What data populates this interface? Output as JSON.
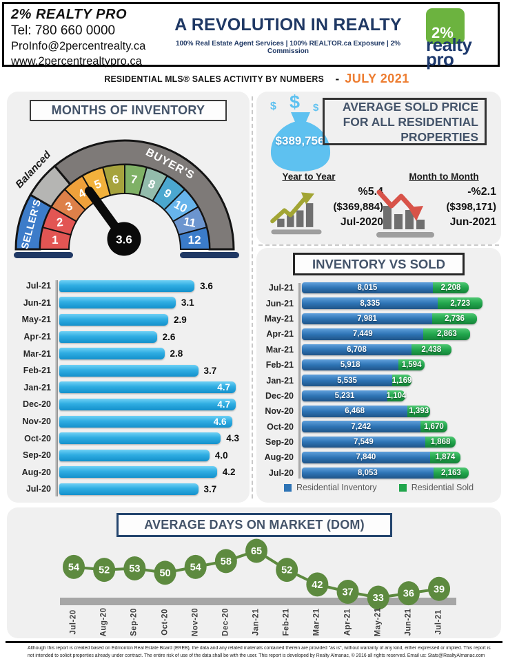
{
  "header": {
    "company": "2% REALTY PRO",
    "phone": "Tel: 780 660 0000",
    "email": "ProInfo@2percentrealty.ca",
    "website": "www.2percentrealtypro.ca",
    "tagline": "A REVOLUTION IN REALTY",
    "tagline_sub": "100% Real Estate Agent Services | 100% REALTOR.ca Exposure | 2% Commission",
    "logo": {
      "badge": "2%",
      "name_line1": "realty",
      "name_line2": "pro",
      "green": "#6CB33F",
      "navy": "#1E3A6E"
    }
  },
  "banner": {
    "title": "RESIDENTIAL MLS® SALES ACTIVITY BY NUMBERS",
    "dash": "-",
    "period": "JULY 2021",
    "period_color": "#ED7D31"
  },
  "gauge": {
    "title": "MONTHS OF INVENTORY",
    "value": 3.6,
    "value_label": "3.6",
    "left_label": "SELLER'S",
    "outside_label": "Balanced",
    "right_label": "BUYER'S",
    "segments": [
      {
        "label": "1",
        "color": "#E25553"
      },
      {
        "label": "2",
        "color": "#E25553"
      },
      {
        "label": "3",
        "color": "#DD8049"
      },
      {
        "label": "4",
        "color": "#EFA13B"
      },
      {
        "label": "5",
        "color": "#F2B13C"
      },
      {
        "label": "6",
        "color": "#A6A33D"
      },
      {
        "label": "7",
        "color": "#7FB166"
      },
      {
        "label": "8",
        "color": "#93BCAC"
      },
      {
        "label": "9",
        "color": "#4BA7CF"
      },
      {
        "label": "10",
        "color": "#67B4EB"
      },
      {
        "label": "11",
        "color": "#6C95CF"
      },
      {
        "label": "12",
        "color": "#3B7CC9"
      }
    ],
    "outer_bands": [
      {
        "from": 0,
        "to": 30,
        "color": "#3D7CC9"
      },
      {
        "from": 30,
        "to": 50,
        "color": "#B5B5B3"
      },
      {
        "from": 50,
        "to": 180,
        "color": "#7E7A78"
      }
    ],
    "base_bar_color": "#1F3864",
    "needle_color": "#0A0A0A"
  },
  "avg_price": {
    "title_line1": "AVERAGE  SOLD PRICE",
    "title_line2": "FOR ALL RESIDENTIAL",
    "title_line3": "PROPERTIES",
    "value": "$389,756",
    "bag_color": "#5EC1F0",
    "yoy": {
      "label": "Year to Year",
      "pct": "%5.4",
      "amount": "($369,884)",
      "period": "Jul-2020",
      "trend": "up",
      "arrow_color": "#A2A534"
    },
    "mom": {
      "label": "Month to Month",
      "pct": "-%2.1",
      "amount": "($398,171)",
      "period": "Jun-2021",
      "trend": "down",
      "arrow_color": "#D85349"
    }
  },
  "chart_data": [
    {
      "id": "months_of_inventory",
      "type": "bar",
      "orientation": "horizontal",
      "title": "MONTHS OF INVENTORY",
      "categories": [
        "Jul-21",
        "Jun-21",
        "May-21",
        "Apr-21",
        "Mar-21",
        "Feb-21",
        "Jan-21",
        "Dec-20",
        "Nov-20",
        "Oct-20",
        "Sep-20",
        "Aug-20",
        "Jul-20"
      ],
      "values": [
        3.6,
        3.1,
        2.9,
        2.6,
        2.8,
        3.7,
        4.7,
        4.7,
        4.6,
        4.3,
        4.0,
        4.2,
        3.7
      ],
      "xlim": [
        0,
        4.7
      ],
      "bar_color": "#2FADE2",
      "grid": false
    },
    {
      "id": "inventory_vs_sold",
      "type": "bar",
      "orientation": "horizontal",
      "stacked": true,
      "title": "INVENTORY VS SOLD",
      "categories": [
        "Jul-21",
        "Jun-21",
        "May-21",
        "Apr-21",
        "Mar-21",
        "Feb-21",
        "Jan-21",
        "Dec-20",
        "Nov-20",
        "Oct-20",
        "Sep-20",
        "Aug-20",
        "Jul-20"
      ],
      "series": [
        {
          "name": "Residential Inventory",
          "color": "#2E74B5",
          "values": [
            8015,
            8335,
            7981,
            7449,
            6708,
            5918,
            5535,
            5231,
            6468,
            7242,
            7549,
            7840,
            8053
          ]
        },
        {
          "name": "Residential Sold",
          "color": "#21A54C",
          "values": [
            2208,
            2723,
            2736,
            2863,
            2438,
            1594,
            1169,
            1104,
            1393,
            1670,
            1868,
            1874,
            2163
          ]
        }
      ],
      "legend_position": "bottom",
      "grid": false
    },
    {
      "id": "avg_days_on_market",
      "type": "line",
      "title": "AVERAGE DAYS ON MARKET  (DOM)",
      "x": [
        "Jul-20",
        "Aug-20",
        "Sep-20",
        "Oct-20",
        "Nov-20",
        "Dec-20",
        "Jan-21",
        "Feb-21",
        "Mar-21",
        "Apr-21",
        "May-21",
        "Jun-21",
        "Jul-21"
      ],
      "values": [
        54,
        52,
        53,
        50,
        54,
        58,
        65,
        52,
        42,
        37,
        33,
        36,
        39
      ],
      "ylim": [
        30,
        70
      ],
      "marker_color": "#5D8A3F",
      "line_color": "#5D8A3F",
      "baseline_color": "#A6A6A6",
      "grid": false
    }
  ],
  "footer": {
    "line1": "Although this report is created based on Edmonton Real Estate Board (EREB), the data and any related materials contained therein are provided \"as is\", without warranty of any kind, either expressed or implied.  This report is",
    "line2": "not intended to solicit properties already under contract.  The entire risk of use of the data shall be with the user.  This report is developed by Realty Almanac, © 2016 all rights reserved. Email us: Stats@RealtyAlmanac.com"
  }
}
